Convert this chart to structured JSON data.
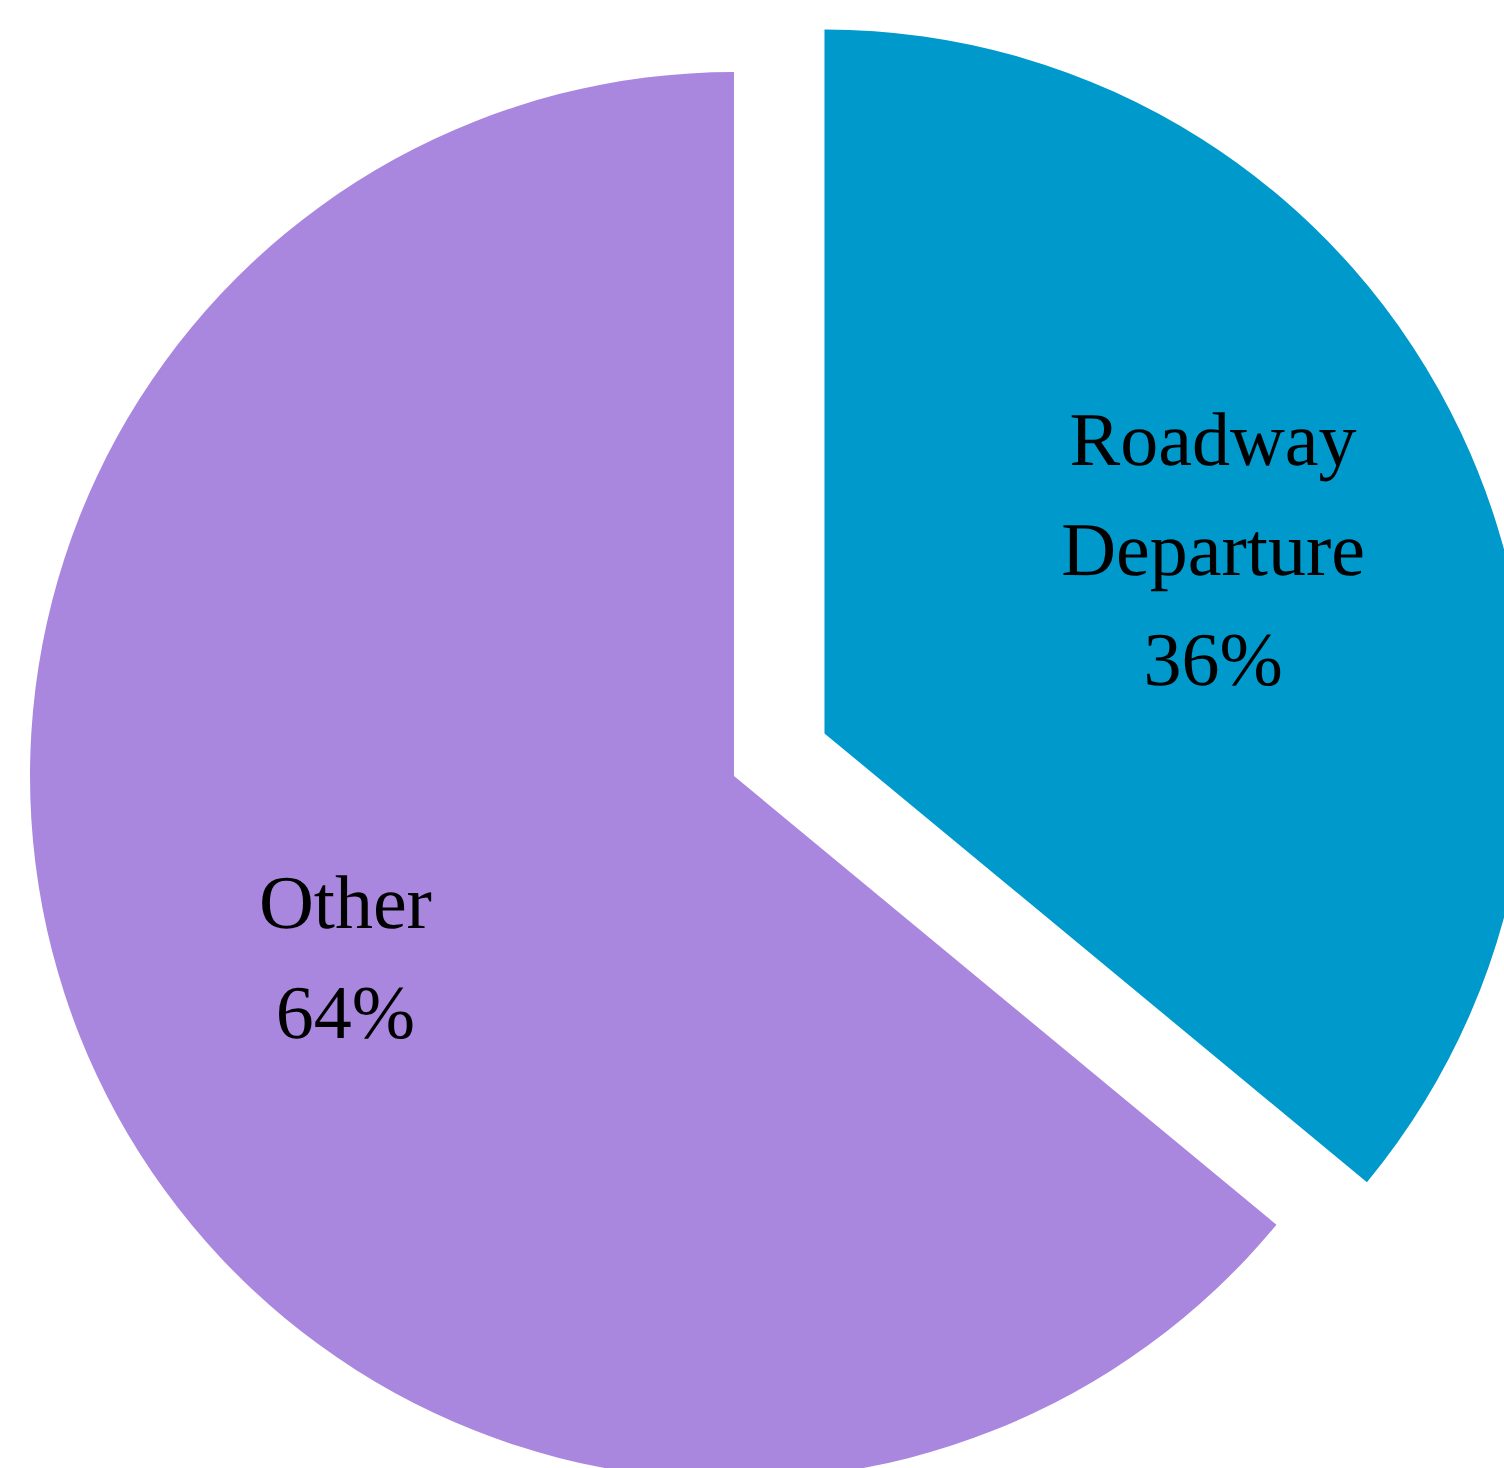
{
  "chart_data": {
    "type": "pie",
    "categories": [
      "Roadway Departure",
      "Other"
    ],
    "values": [
      36,
      64
    ],
    "colors": [
      "#0099cc",
      "#a987df"
    ],
    "value_labels": [
      "36%",
      "64%"
    ]
  }
}
